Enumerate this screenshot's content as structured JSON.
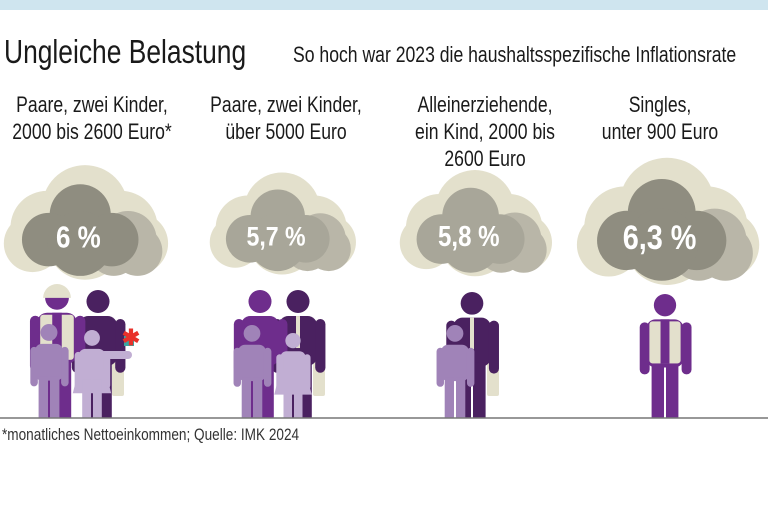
{
  "title": "Ungleiche Belastung",
  "subtitle": "So hoch war 2023 die haushaltsspezifische Inflationsrate",
  "footnote": "*monatliches Nettoeinkommen; Quelle: IMK 2024",
  "colors": {
    "topbar": "#cfe5ef",
    "cloud_back": "#e3e0cc",
    "cloud_mid": "#b9b6a8",
    "cloud_front_dark": "#8f8d80",
    "cloud_front_light": "#a8a699",
    "purple": "#6e2d8c",
    "dark_purple": "#4a2160",
    "light_purple": "#a083b8",
    "lighter_purple": "#c1aed3",
    "cream": "#e3e0cc",
    "flower": "#e8312a"
  },
  "chart_data": {
    "type": "bar",
    "title": "Ungleiche Belastung",
    "subtitle": "So hoch war 2023 die haushaltsspezifische Inflationsrate",
    "unit": "%",
    "categories": [
      "Paare, zwei Kinder,\n2000 bis 2600 Euro*",
      "Paare, zwei Kinder,\nüber 5000 Euro",
      "Alleinerziehende,\nein Kind, 2000 bis\n2600 Euro",
      "Singles,\nunter 900 Euro"
    ],
    "values": [
      6.0,
      5.7,
      5.8,
      6.3
    ],
    "value_labels": [
      "6 %",
      "5,7 %",
      "5,8 %",
      "6,3 %"
    ],
    "icons": [
      "family-two-adults-two-kids-icon",
      "family-two-adults-two-kids-icon",
      "single-parent-one-kid-icon",
      "single-person-icon"
    ]
  }
}
